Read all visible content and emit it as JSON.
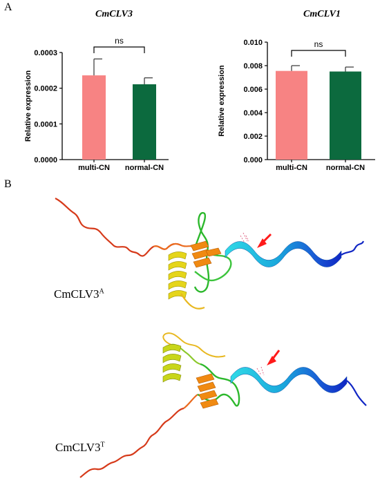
{
  "panels": {
    "a_label": "A",
    "b_label": "B"
  },
  "chart_data": [
    {
      "type": "bar",
      "title": "CmCLV3",
      "categories": [
        "multi-CN",
        "normal-CN"
      ],
      "values": [
        0.000236,
        0.000211
      ],
      "errors": [
        4.6e-05,
        1.8e-05
      ],
      "colors": [
        "#f78383",
        "#0c6a3e"
      ],
      "ylabel": "Relative expression",
      "ylim": [
        0,
        0.0003
      ],
      "yticks": [
        "0.0000",
        "0.0001",
        "0.0002",
        "0.0003"
      ],
      "significance": "ns",
      "grid": false
    },
    {
      "type": "bar",
      "title": "CmCLV1",
      "categories": [
        "multi-CN",
        "normal-CN"
      ],
      "values": [
        0.00755,
        0.0075
      ],
      "errors": [
        0.00045,
        0.00038
      ],
      "colors": [
        "#f78383",
        "#0c6a3e"
      ],
      "ylabel": "Relative expression",
      "ylim": [
        0,
        0.01
      ],
      "yticks": [
        "0.000",
        "0.002",
        "0.004",
        "0.006",
        "0.008",
        "0.010"
      ],
      "significance": "ns",
      "grid": false
    }
  ],
  "structures": [
    {
      "name": "CmCLV3",
      "superscript": "A"
    },
    {
      "name": "CmCLV3",
      "superscript": "T"
    }
  ]
}
